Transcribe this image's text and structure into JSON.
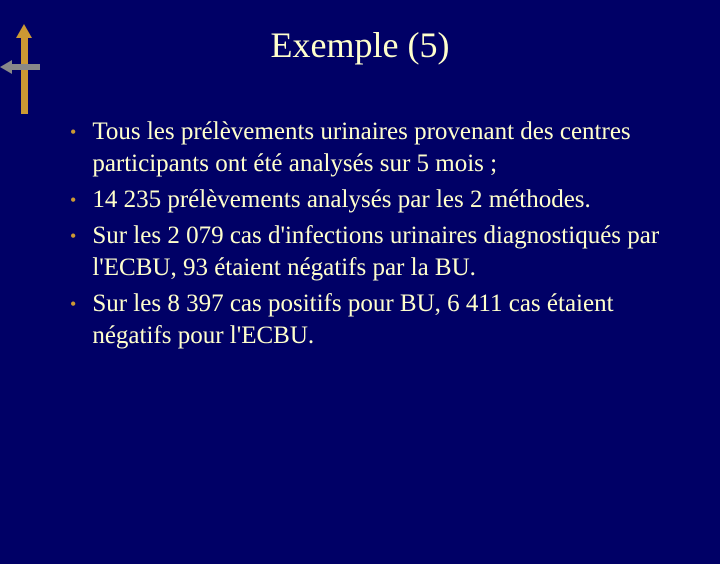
{
  "decoration": {
    "arrow_up_color": "#cc9933",
    "arrow_left_color": "#888888"
  },
  "title": "Exemple (5)",
  "title_color": "#ffffcc",
  "title_fontsize": 36,
  "background_color": "#000066",
  "bullets": {
    "marker_color": "#cc9933",
    "text_color": "#ffffcc",
    "text_fontsize": 25,
    "items": [
      "Tous les prélèvements urinaires provenant des centres participants ont été analysés sur 5 mois ;",
      "14 235 prélèvements analysés par les 2 méthodes.",
      "Sur les 2 079 cas d'infections urinaires diagnostiqués par l'ECBU, 93 étaient négatifs par la BU.",
      "Sur les 8 397 cas positifs pour BU, 6 411 cas étaient négatifs pour l'ECBU."
    ]
  }
}
